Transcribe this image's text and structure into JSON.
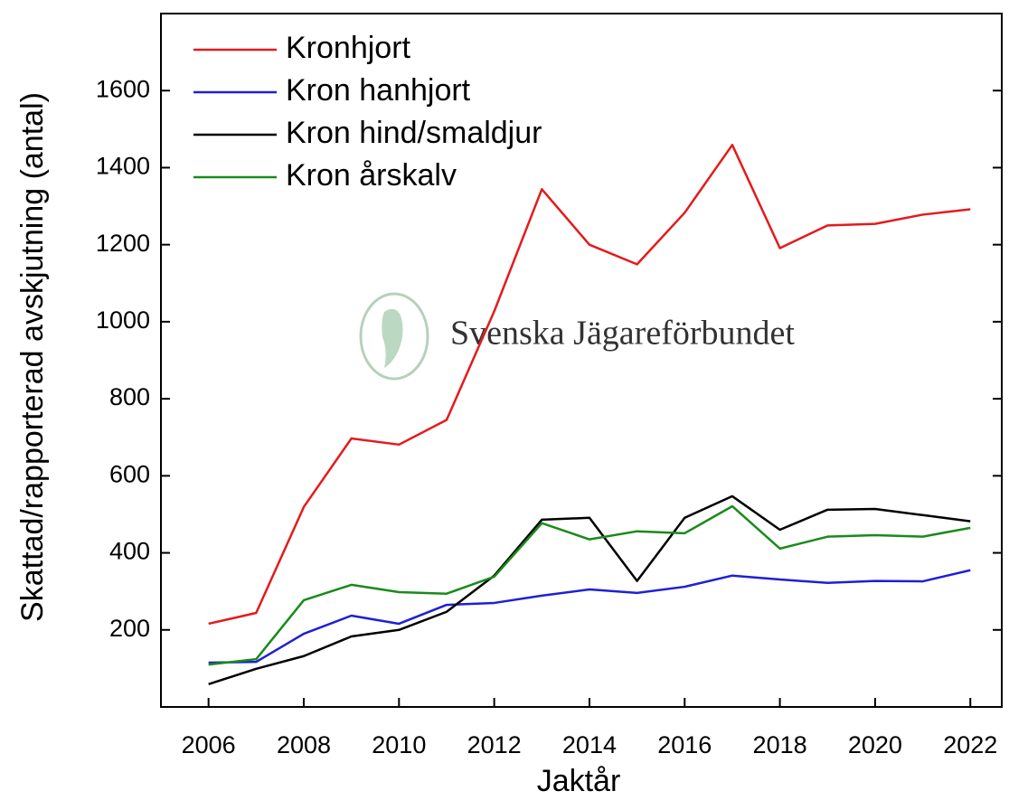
{
  "chart_data": {
    "type": "line",
    "x_label": "Jaktår",
    "y_label": "Skattad/rapporterad avskjutning (antal)",
    "watermark": "Svenska Jägareförbundet",
    "x": [
      2006,
      2007,
      2008,
      2009,
      2010,
      2011,
      2012,
      2013,
      2014,
      2015,
      2016,
      2017,
      2018,
      2019,
      2020,
      2021,
      2022
    ],
    "series": [
      {
        "name": "Kronhjort",
        "color": "#e41a1c",
        "values": [
          216,
          244,
          519,
          697,
          681,
          745,
          1027,
          1344,
          1200,
          1149,
          1283,
          1459,
          1191,
          1250,
          1254,
          1278,
          1292
        ]
      },
      {
        "name": "Kron hanhjort",
        "color": "#1f1fd6",
        "values": [
          115,
          117,
          190,
          237,
          216,
          265,
          270,
          289,
          305,
          296,
          312,
          341,
          331,
          322,
          327,
          326,
          355
        ]
      },
      {
        "name": "Kron hind/smaldjur",
        "color": "#000000",
        "values": [
          59,
          99,
          132,
          183,
          200,
          247,
          341,
          486,
          491,
          327,
          491,
          547,
          460,
          512,
          514,
          498,
          482
        ]
      },
      {
        "name": "Kron årskalv",
        "color": "#1a8a1a",
        "values": [
          110,
          124,
          277,
          317,
          298,
          294,
          338,
          477,
          435,
          456,
          451,
          521,
          411,
          442,
          446,
          442,
          465
        ]
      }
    ],
    "xlim": [
      2005,
      2022.66
    ],
    "xticks": [
      2006,
      2008,
      2010,
      2012,
      2014,
      2016,
      2018,
      2020,
      2022
    ],
    "ylim": [
      0,
      1800
    ],
    "yticks": [
      200,
      400,
      600,
      800,
      1000,
      1200,
      1400,
      1600
    ],
    "grid": false,
    "legend": "upper left"
  }
}
